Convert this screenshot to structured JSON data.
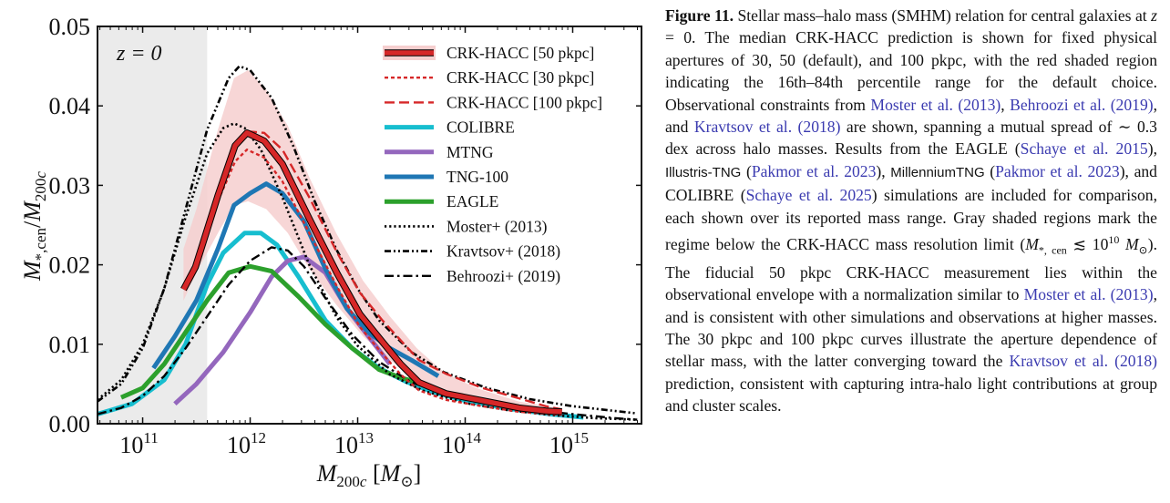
{
  "chart_data": {
    "type": "line",
    "title": "",
    "annotation": "z = 0",
    "xlabel": "M_200c [M_sun]",
    "ylabel": "M_*,cen / M_200c",
    "xscale": "log",
    "xlim_log10": [
      10.58,
      15.64
    ],
    "ylim": [
      0.0,
      0.05
    ],
    "x_ticks": [
      {
        "log": 11,
        "label": "10",
        "exp": "11"
      },
      {
        "log": 12,
        "label": "10",
        "exp": "12"
      },
      {
        "log": 13,
        "label": "10",
        "exp": "13"
      },
      {
        "log": 14,
        "label": "10",
        "exp": "14"
      },
      {
        "log": 15,
        "label": "10",
        "exp": "15"
      }
    ],
    "y_ticks": [
      {
        "value": 0.0,
        "label": "0.00"
      },
      {
        "value": 0.01,
        "label": "0.01"
      },
      {
        "value": 0.02,
        "label": "0.02"
      },
      {
        "value": 0.03,
        "label": "0.03"
      },
      {
        "value": 0.04,
        "label": "0.04"
      },
      {
        "value": 0.05,
        "label": "0.05"
      }
    ],
    "grid": false,
    "legend_position": "top-right",
    "resolution_limit_shade": {
      "x_log10_max": 11.6,
      "color": "#ebebeb"
    },
    "band": {
      "name": "CRK-HACC [50 pkpc] 16th-84th percentile",
      "color": "#f6cfcf",
      "x_log10": [
        11.38,
        11.5,
        11.7,
        11.85,
        11.98,
        12.15,
        12.35,
        12.55,
        12.8,
        13.05,
        13.3,
        13.55,
        13.8,
        14.1,
        14.5,
        14.9
      ],
      "upper": [
        0.022,
        0.027,
        0.037,
        0.0435,
        0.0445,
        0.042,
        0.0375,
        0.031,
        0.024,
        0.018,
        0.0135,
        0.0095,
        0.0065,
        0.0045,
        0.0028,
        0.0019
      ],
      "lower": [
        0.0155,
        0.019,
        0.024,
        0.0275,
        0.028,
        0.027,
        0.024,
        0.0195,
        0.015,
        0.011,
        0.008,
        0.0055,
        0.004,
        0.003,
        0.0018,
        0.0012
      ]
    },
    "series": [
      {
        "name": "CRK-HACC [50 pkpc]",
        "color": "#d62728",
        "style": "thick-outlined",
        "x_log10": [
          11.38,
          11.49,
          11.7,
          11.86,
          11.97,
          12.13,
          12.3,
          12.55,
          12.81,
          13.02,
          13.23,
          13.4,
          13.57,
          13.82,
          14.16,
          14.5,
          14.75,
          14.9
        ],
        "y": [
          0.0169,
          0.0197,
          0.0287,
          0.035,
          0.0366,
          0.0356,
          0.0327,
          0.0258,
          0.0189,
          0.0138,
          0.0103,
          0.0075,
          0.0052,
          0.0038,
          0.0029,
          0.002,
          0.0016,
          0.0015
        ]
      },
      {
        "name": "CRK-HACC [30 pkpc]",
        "color": "#d62728",
        "style": "dotted",
        "x_log10": [
          11.7,
          11.86,
          11.97,
          12.13,
          12.3,
          12.55,
          12.81,
          13.02,
          13.23,
          13.4,
          13.57,
          13.82,
          14.16,
          14.5,
          14.9
        ],
        "y": [
          0.028,
          0.033,
          0.0345,
          0.0335,
          0.0305,
          0.024,
          0.0172,
          0.0122,
          0.0088,
          0.0062,
          0.0042,
          0.003,
          0.0022,
          0.0015,
          0.0011
        ]
      },
      {
        "name": "CRK-HACC [100 pkpc]",
        "color": "#d62728",
        "style": "dashed",
        "x_log10": [
          11.97,
          12.13,
          12.3,
          12.55,
          12.81,
          13.02,
          13.23,
          13.4,
          13.57,
          13.82,
          14.16,
          14.5,
          14.75,
          14.9
        ],
        "y": [
          0.0368,
          0.0366,
          0.0345,
          0.0285,
          0.0215,
          0.0165,
          0.013,
          0.0105,
          0.008,
          0.0063,
          0.0045,
          0.0032,
          0.0022,
          0.0018
        ]
      },
      {
        "name": "COLIBRE",
        "color": "#17becf",
        "style": "solid",
        "x_log10": [
          10.58,
          10.9,
          11.2,
          11.4,
          11.6,
          11.75,
          11.95,
          12.1,
          12.25,
          12.45,
          12.7,
          12.95,
          13.2,
          13.45,
          13.7,
          14.0,
          14.4,
          14.8,
          15.1
        ],
        "y": [
          0.0012,
          0.0025,
          0.0055,
          0.01,
          0.0175,
          0.0215,
          0.024,
          0.024,
          0.0225,
          0.0185,
          0.013,
          0.0095,
          0.007,
          0.0053,
          0.004,
          0.0029,
          0.0019,
          0.0012,
          0.0008
        ]
      },
      {
        "name": "MTNG",
        "color": "#9467bd",
        "style": "solid",
        "x_log10": [
          11.3,
          11.5,
          11.75,
          12.0,
          12.2,
          12.35,
          12.5,
          12.7,
          12.9,
          13.1,
          13.3
        ],
        "y": [
          0.0025,
          0.005,
          0.009,
          0.014,
          0.0185,
          0.0205,
          0.021,
          0.019,
          0.0145,
          0.011,
          0.0075
        ]
      },
      {
        "name": "TNG-100",
        "color": "#1f77b4",
        "style": "solid",
        "x_log10": [
          11.1,
          11.3,
          11.5,
          11.7,
          11.85,
          12.0,
          12.15,
          12.3,
          12.5,
          12.7,
          12.9,
          13.1,
          13.3,
          13.5,
          13.75
        ],
        "y": [
          0.007,
          0.011,
          0.0155,
          0.022,
          0.0275,
          0.029,
          0.0302,
          0.029,
          0.0255,
          0.0195,
          0.0145,
          0.0115,
          0.0095,
          0.008,
          0.006
        ]
      },
      {
        "name": "EAGLE",
        "color": "#2ca02c",
        "style": "solid",
        "x_log10": [
          10.8,
          11.0,
          11.2,
          11.4,
          11.6,
          11.8,
          12.0,
          12.2,
          12.45,
          12.7,
          12.95,
          13.2,
          13.4,
          13.6
        ],
        "y": [
          0.0033,
          0.0045,
          0.0075,
          0.0115,
          0.0155,
          0.019,
          0.0198,
          0.0192,
          0.016,
          0.0125,
          0.0095,
          0.0068,
          0.0058,
          0.005
        ]
      },
      {
        "name": "Moster+ (2013)",
        "color": "#000000",
        "style": "dotted",
        "x_log10": [
          10.58,
          10.8,
          11.0,
          11.2,
          11.4,
          11.6,
          11.75,
          11.85,
          11.95,
          12.1,
          12.3,
          12.55,
          12.8,
          13.0,
          13.3,
          13.6,
          14.0,
          14.4,
          14.8,
          15.2,
          15.6
        ],
        "y": [
          0.003,
          0.0055,
          0.01,
          0.017,
          0.026,
          0.034,
          0.0372,
          0.0378,
          0.0372,
          0.0345,
          0.0285,
          0.02,
          0.0135,
          0.0098,
          0.0062,
          0.0042,
          0.0026,
          0.0017,
          0.0011,
          0.0007,
          0.0005
        ]
      },
      {
        "name": "Kravtsov+ (2018)",
        "color": "#000000",
        "style": "dash-dot-dot",
        "x_log10": [
          10.58,
          10.8,
          11.0,
          11.2,
          11.4,
          11.6,
          11.8,
          11.9,
          12.0,
          12.2,
          12.4,
          12.6,
          12.8,
          13.0,
          13.2,
          13.5,
          13.8,
          14.2,
          14.6,
          15.0,
          15.6
        ],
        "y": [
          0.0028,
          0.005,
          0.0095,
          0.017,
          0.027,
          0.037,
          0.0435,
          0.045,
          0.0445,
          0.041,
          0.035,
          0.028,
          0.022,
          0.017,
          0.013,
          0.009,
          0.0065,
          0.0045,
          0.0031,
          0.0022,
          0.0013
        ]
      },
      {
        "name": "Behroozi+ (2019)",
        "color": "#000000",
        "style": "dash-dot",
        "x_log10": [
          10.58,
          10.8,
          11.0,
          11.2,
          11.4,
          11.6,
          11.8,
          12.0,
          12.2,
          12.35,
          12.5,
          12.7,
          12.95,
          13.2,
          13.5,
          13.8,
          14.2,
          14.6,
          15.0,
          15.4,
          15.6
        ],
        "y": [
          0.0012,
          0.002,
          0.0035,
          0.006,
          0.0095,
          0.0135,
          0.0175,
          0.0205,
          0.0222,
          0.0218,
          0.0198,
          0.0158,
          0.0112,
          0.0078,
          0.0052,
          0.0038,
          0.0027,
          0.0018,
          0.0012,
          0.0007,
          0.0005
        ]
      }
    ],
    "legend": [
      {
        "label": "CRK-HACC [50 pkpc]",
        "series": 0
      },
      {
        "label": "CRK-HACC [30 pkpc]",
        "series": 1
      },
      {
        "label": "CRK-HACC [100 pkpc]",
        "series": 2
      },
      {
        "label": "COLIBRE",
        "series": 3
      },
      {
        "label": "MTNG",
        "series": 4
      },
      {
        "label": "TNG-100",
        "series": 5
      },
      {
        "label": "EAGLE",
        "series": 6
      },
      {
        "label": "Moster+ (2013)",
        "series": 7
      },
      {
        "label": "Kravtsov+ (2018)",
        "series": 8
      },
      {
        "label": "Behroozi+ (2019)",
        "series": 9
      }
    ]
  },
  "caption": {
    "label": "Figure 11.",
    "segments": [
      {
        "t": " Stellar mass–halo mass (SMHM) relation for central galaxies at "
      },
      {
        "t": "z",
        "c": "it"
      },
      {
        "t": " = 0.  The median "
      },
      {
        "t": "CRK-HACC",
        "c": "sc"
      },
      {
        "t": " prediction is shown for fixed physical apertures of 30, 50 (default), and 100 pkpc, with the red shaded region indicating the 16th–84th percentile range for the default choice.  Observational constraints from "
      },
      {
        "t": "Moster et al. (2013)",
        "c": "cite"
      },
      {
        "t": ", "
      },
      {
        "t": "Behroozi et al. (2019)",
        "c": "cite"
      },
      {
        "t": ", and "
      },
      {
        "t": "Kravtsov et al. (2018)",
        "c": "cite"
      },
      {
        "t": " are shown, spanning a mutual spread of ∼ 0.3 dex across halo masses.  Results from the "
      },
      {
        "t": "EAGLE",
        "c": "sc"
      },
      {
        "t": " ("
      },
      {
        "t": "Schaye et al. 2015",
        "c": "cite"
      },
      {
        "t": "), "
      },
      {
        "t": "Illustris-TNG",
        "c": "sf"
      },
      {
        "t": " ("
      },
      {
        "t": "Pakmor et al. 2023",
        "c": "cite"
      },
      {
        "t": "), "
      },
      {
        "t": "MillenniumTNG",
        "c": "sf"
      },
      {
        "t": " ("
      },
      {
        "t": "Pakmor et al. 2023",
        "c": "cite"
      },
      {
        "t": "), and "
      },
      {
        "t": "COLIBRE",
        "c": "sc"
      },
      {
        "t": " ("
      },
      {
        "t": "Schaye et al. 2025",
        "c": "cite"
      },
      {
        "t": ") simulations are included for comparison, each shown over its reported mass range.  Gray shaded regions mark the regime below the "
      },
      {
        "t": "CRK-HACC",
        "c": "sc"
      },
      {
        "t": " mass resolution limit ("
      },
      {
        "t": "M",
        "c": "it"
      },
      {
        "t": "*, cen",
        "c": "sub"
      },
      {
        "t": " ≲ 10"
      },
      {
        "t": "10",
        "c": "sup"
      },
      {
        "t": " "
      },
      {
        "t": "M",
        "c": "it"
      },
      {
        "t": "⊙",
        "c": "sub"
      },
      {
        "t": ").  The fiducial 50 pkpc "
      },
      {
        "t": "CRK-HACC",
        "c": "sc"
      },
      {
        "t": " measurement lies within the observational envelope with a normalization similar to "
      },
      {
        "t": "Moster et al. (2013)",
        "c": "cite"
      },
      {
        "t": ", and is consistent with other simulations and observations at higher masses.  The 30 pkpc and 100 pkpc curves illustrate the aperture dependence of stellar mass, with the latter converging toward the "
      },
      {
        "t": "Kravtsov et al. (2018)",
        "c": "cite"
      },
      {
        "t": " prediction, consistent with capturing intra-halo light contributions at group and cluster scales."
      }
    ]
  }
}
